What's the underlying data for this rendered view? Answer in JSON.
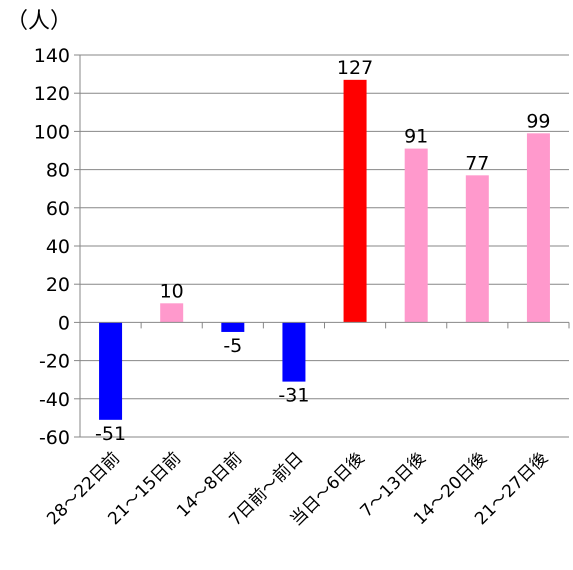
{
  "chart_data": {
    "type": "bar",
    "unit_label": "（人）",
    "categories": [
      "28～22日前",
      "21～15日前",
      "14～8日前",
      "7日前～前日",
      "当日～6日後",
      "7～13日後",
      "14～20日後",
      "21～27日後"
    ],
    "values": [
      -51,
      10,
      -5,
      -31,
      127,
      91,
      77,
      99
    ],
    "data_labels": [
      "-51",
      "10",
      "-5",
      "-31",
      "127",
      "91",
      "77",
      "99"
    ],
    "bar_colors": [
      "#0000ff",
      "#ff99cc",
      "#0000ff",
      "#0000ff",
      "#ff0000",
      "#ff99cc",
      "#ff99cc",
      "#ff99cc"
    ],
    "ylim": [
      -60,
      140
    ],
    "yticks": [
      140,
      120,
      100,
      80,
      60,
      40,
      20,
      0,
      -20,
      -40,
      -60
    ],
    "ytick_labels": [
      "140",
      "120",
      "100",
      "80",
      "60",
      "40",
      "20",
      "0",
      "-20",
      "-40",
      "-60"
    ],
    "grid": true,
    "legend": "none"
  }
}
